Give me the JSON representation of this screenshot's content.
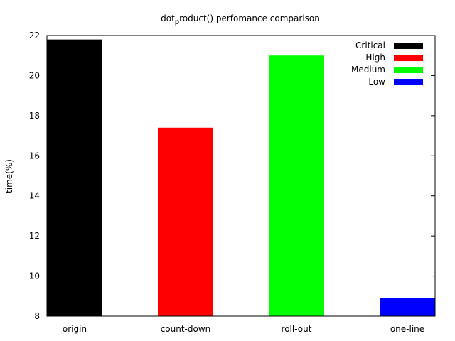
{
  "chart_data": {
    "type": "bar",
    "title_part1": "dot",
    "title_sub": "p",
    "title_part2": "roduct() perfomance comparison",
    "xlabel": "",
    "ylabel": "time(%)",
    "ylim": [
      8,
      22
    ],
    "yticks": [
      8,
      10,
      12,
      14,
      16,
      18,
      20,
      22
    ],
    "grid": false,
    "legend_position": "top-right",
    "categories": [
      "origin",
      "count-down",
      "roll-out",
      "one-line"
    ],
    "series": [
      {
        "name": "Critical",
        "color": "#000000",
        "values": [
          21.8,
          null,
          null,
          null
        ]
      },
      {
        "name": "High",
        "color": "#ff0000",
        "values": [
          null,
          17.4,
          null,
          null
        ]
      },
      {
        "name": "Medium",
        "color": "#00ff00",
        "values": [
          null,
          null,
          21.0,
          null
        ]
      },
      {
        "name": "Low",
        "color": "#0000ff",
        "values": [
          null,
          null,
          null,
          8.9
        ]
      }
    ]
  }
}
